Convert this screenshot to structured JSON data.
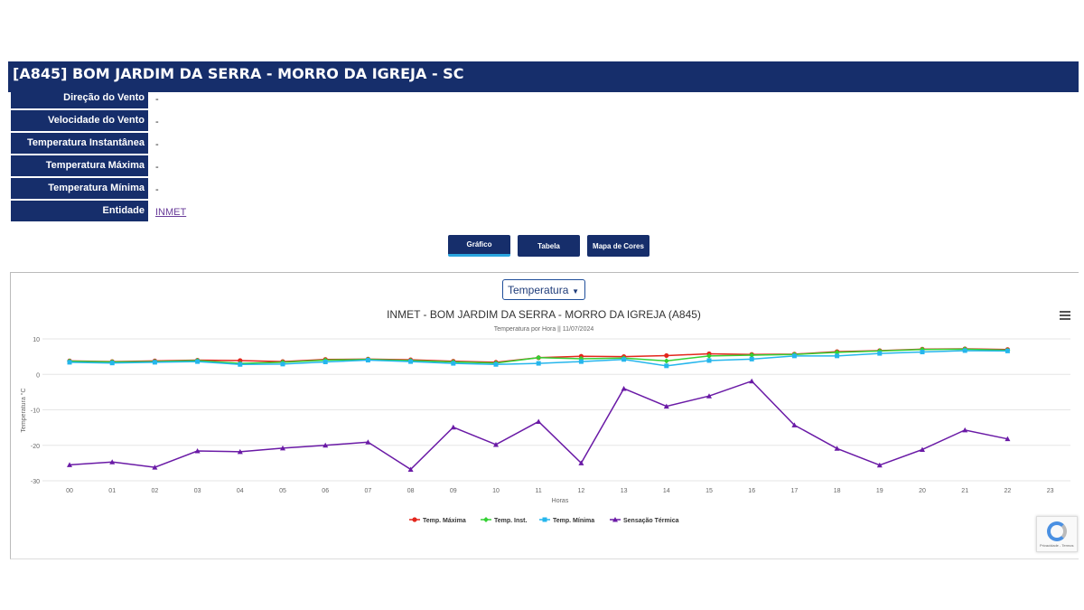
{
  "station": {
    "title": "[A845] BOM JARDIM DA SERRA - MORRO DA IGREJA - SC"
  },
  "info": [
    {
      "label": "Direção do Vento",
      "value": "-"
    },
    {
      "label": "Velocidade do Vento",
      "value": "-"
    },
    {
      "label": "Temperatura Instantânea",
      "value": "-"
    },
    {
      "label": "Temperatura Máxima",
      "value": "-"
    },
    {
      "label": "Temperatura Mínima",
      "value": "-"
    },
    {
      "label": "Entidade",
      "value": "INMET"
    }
  ],
  "tabs": [
    {
      "label": "Gráfico",
      "active": true
    },
    {
      "label": "Tabela",
      "active": false
    },
    {
      "label": "Mapa de Cores",
      "active": false
    }
  ],
  "variable_select": {
    "value": "Temperatura",
    "caret": "▼"
  },
  "menu_icon": "hamburger-icon",
  "recaptcha": {
    "text": "Privacidade - Termos"
  },
  "colors": {
    "header": "#162e6b",
    "max": "#e3261c",
    "inst": "#34d134",
    "min": "#25b6ec",
    "sensacao": "#6a1aa6"
  },
  "chart_data": {
    "type": "line",
    "title": "INMET - BOM JARDIM DA SERRA - MORRO DA IGREJA (A845)",
    "subtitle": "Temperatura por Hora || 11/07/2024",
    "xlabel": "Horas",
    "ylabel": "Temperatura °C",
    "categories": [
      "00",
      "01",
      "02",
      "03",
      "04",
      "05",
      "06",
      "07",
      "08",
      "09",
      "10",
      "11",
      "12",
      "13",
      "14",
      "15",
      "16",
      "17",
      "18",
      "19",
      "20",
      "21",
      "22",
      "23"
    ],
    "yticks": [
      10,
      0,
      -10,
      -20,
      -30
    ],
    "ylim": [
      -30,
      10
    ],
    "grid": true,
    "legend_position": "bottom",
    "series": [
      {
        "name": "Temp. Máxima",
        "color": "#e3261c",
        "marker": "circle",
        "values": [
          3.8,
          3.6,
          3.8,
          4.0,
          3.9,
          3.6,
          4.2,
          4.3,
          4.1,
          3.7,
          3.4,
          4.7,
          5.1,
          5.0,
          5.3,
          5.8,
          5.6,
          5.7,
          6.4,
          6.7,
          7.1,
          7.2,
          7.0,
          null
        ]
      },
      {
        "name": "Temp. Inst.",
        "color": "#34d134",
        "marker": "diamond",
        "values": [
          3.7,
          3.5,
          3.6,
          3.9,
          3.1,
          3.4,
          4.0,
          4.2,
          3.9,
          3.5,
          3.2,
          4.7,
          4.4,
          4.6,
          3.8,
          5.2,
          5.4,
          5.6,
          6.2,
          6.6,
          7.0,
          7.1,
          6.8,
          null
        ]
      },
      {
        "name": "Temp. Mínima",
        "color": "#25b6ec",
        "marker": "square",
        "values": [
          3.4,
          3.2,
          3.4,
          3.6,
          2.8,
          2.9,
          3.5,
          4.0,
          3.6,
          3.1,
          2.8,
          3.1,
          3.6,
          4.2,
          2.4,
          3.9,
          4.3,
          5.2,
          5.2,
          5.9,
          6.3,
          6.7,
          6.6,
          null
        ]
      },
      {
        "name": "Sensação Térmica",
        "color": "#6a1aa6",
        "marker": "triangle",
        "values": [
          -25.5,
          -24.7,
          -26.2,
          -21.6,
          -21.8,
          -20.8,
          -20.0,
          -19.1,
          -26.8,
          -14.9,
          -19.8,
          -13.3,
          -25.0,
          -4.0,
          -9.0,
          -6.1,
          -1.9,
          -14.3,
          -20.9,
          -25.6,
          -21.2,
          -15.7,
          -18.2,
          null
        ]
      }
    ]
  }
}
